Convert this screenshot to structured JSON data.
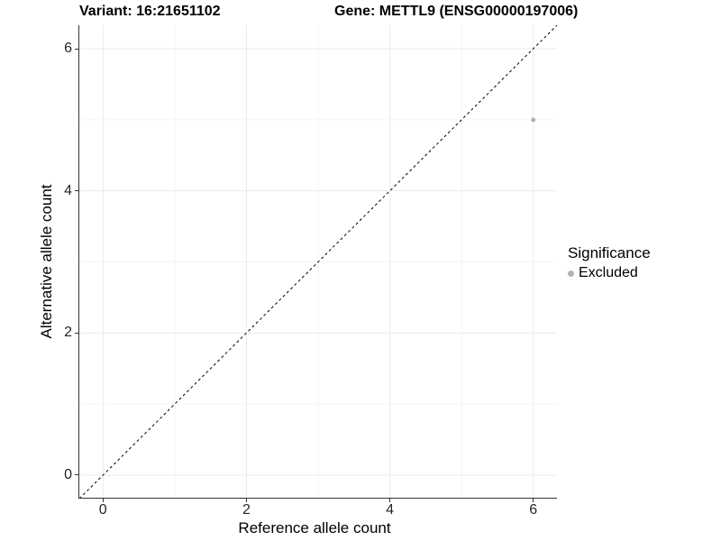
{
  "header": {
    "left_title": "Variant: 16:21651102",
    "right_title": "Gene: METTL9 (ENSG00000197006)"
  },
  "axes": {
    "x_label": "Reference allele count",
    "y_label": "Alternative allele count"
  },
  "legend": {
    "title": "Significance",
    "items": [
      {
        "label": "Excluded",
        "color": "#b3b3b3"
      }
    ]
  },
  "chart_data": {
    "type": "scatter",
    "title": "Variant: 16:21651102 — Gene: METTL9 (ENSG00000197006)",
    "xlabel": "Reference allele count",
    "ylabel": "Alternative allele count",
    "xlim": [
      -0.33,
      6.33
    ],
    "ylim": [
      -0.33,
      6.33
    ],
    "x_ticks": [
      0,
      2,
      4,
      6
    ],
    "y_ticks": [
      0,
      2,
      4,
      6
    ],
    "x_minor_ticks": [
      1,
      3,
      5
    ],
    "y_minor_ticks": [
      1,
      3,
      5
    ],
    "grid": true,
    "legend_position": "right",
    "series": [
      {
        "name": "Excluded",
        "color": "#b3b3b3",
        "points": [
          {
            "x": 6,
            "y": 5
          }
        ]
      }
    ],
    "reference_line": {
      "type": "identity",
      "equation": "y = x",
      "style": "dashed",
      "color": "#000000"
    },
    "colors": {
      "grid_major": "#ebebeb",
      "grid_minor": "#f5f5f5",
      "axis": "#333333",
      "point": "#b3b3b3"
    }
  }
}
